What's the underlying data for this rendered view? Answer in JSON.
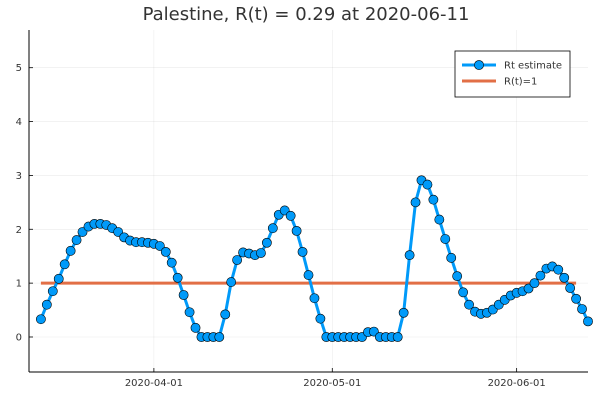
{
  "chart_data": {
    "type": "line",
    "title": "Palestine, R(t) = 0.29 at 2020-06-11",
    "xlabel": "",
    "ylabel": "",
    "x_start": "2020-03-13",
    "x_end": "2020-06-11",
    "xlim": [
      "2020-03-11",
      "2020-06-13"
    ],
    "ylim": [
      -0.65,
      5.7
    ],
    "grid": true,
    "legend_position": "top-right",
    "x_ticks": [
      "2020-04-01",
      "2020-05-01",
      "2020-06-01"
    ],
    "y_ticks": [
      0,
      1,
      2,
      3,
      4,
      5
    ],
    "series": [
      {
        "name": "Rt estimate",
        "color": "#009AF9",
        "marker": "circle",
        "values": [
          0.33,
          0.6,
          0.85,
          1.08,
          1.35,
          1.6,
          1.8,
          1.95,
          2.05,
          2.1,
          2.1,
          2.08,
          2.02,
          1.95,
          1.85,
          1.79,
          1.76,
          1.76,
          1.75,
          1.73,
          1.69,
          1.58,
          1.38,
          1.1,
          0.78,
          0.46,
          0.17,
          0.0,
          0.0,
          0.0,
          0.0,
          0.42,
          1.02,
          1.43,
          1.57,
          1.55,
          1.52,
          1.56,
          1.75,
          2.02,
          2.27,
          2.35,
          2.25,
          1.97,
          1.58,
          1.15,
          0.72,
          0.34,
          0.0,
          0.0,
          0.0,
          0.0,
          0.0,
          0.0,
          0.0,
          0.09,
          0.1,
          0.0,
          0.0,
          0.0,
          0.0,
          0.45,
          1.52,
          2.5,
          2.91,
          2.83,
          2.55,
          2.18,
          1.82,
          1.47,
          1.13,
          0.83,
          0.6,
          0.47,
          0.43,
          0.45,
          0.51,
          0.6,
          0.69,
          0.77,
          0.82,
          0.85,
          0.9,
          1.0,
          1.14,
          1.27,
          1.31,
          1.25,
          1.1,
          0.91,
          0.71,
          0.52,
          0.29
        ]
      },
      {
        "name": "R(t)=1",
        "color": "#E26F46",
        "marker": "none",
        "values": [
          1,
          1
        ]
      }
    ]
  }
}
